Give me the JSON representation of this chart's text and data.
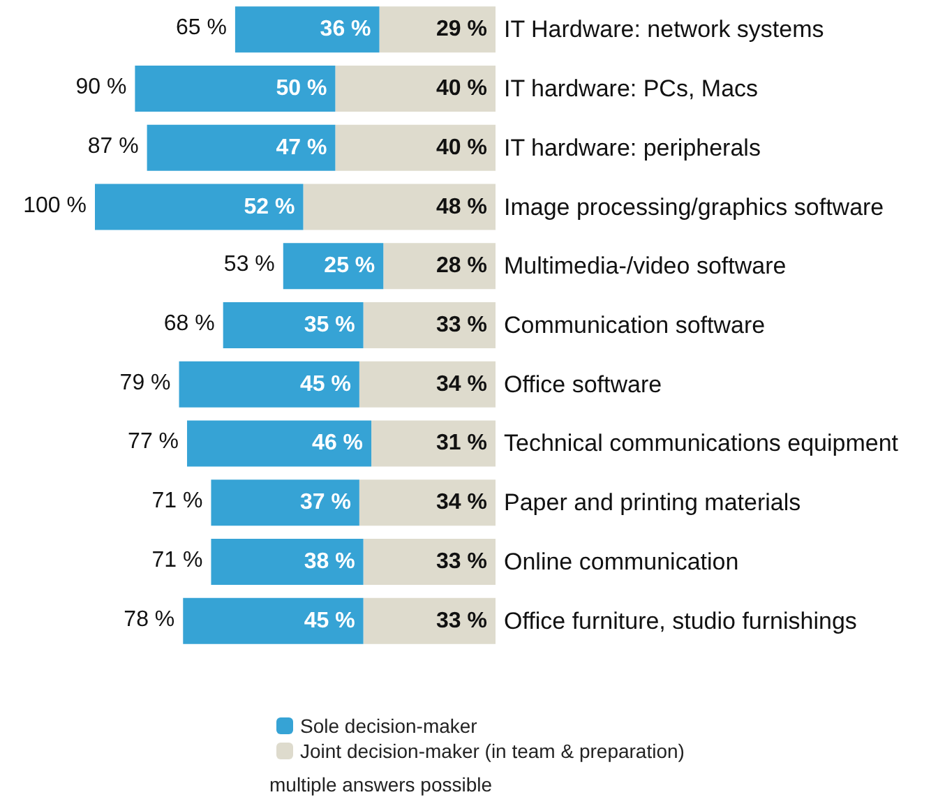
{
  "chart_data": {
    "type": "bar",
    "orientation": "horizontal",
    "stacked": true,
    "categories": [
      "IT Hardware: network systems",
      "IT hardware: PCs, Macs",
      "IT hardware: peripherals",
      "Image processing/graphics software",
      "Multimedia-/video software",
      "Communication software",
      "Office software",
      "Technical communications equipment",
      "Paper and printing materials",
      "Online communication",
      "Office furniture, studio furnishings"
    ],
    "series": [
      {
        "name": "Joint decision-maker (in team & preparation)",
        "color": "#dedbcd",
        "values": [
          29,
          40,
          40,
          48,
          28,
          33,
          34,
          31,
          34,
          33,
          33
        ],
        "value_labels": [
          "29 %",
          "40 %",
          "40 %",
          "48 %",
          "28 %",
          "33 %",
          "34 %",
          "31 %",
          "34 %",
          "33 %",
          "33 %"
        ]
      },
      {
        "name": "Sole decision-maker",
        "color": "#36a3d5",
        "values": [
          36,
          50,
          47,
          52,
          25,
          35,
          45,
          46,
          37,
          38,
          45
        ],
        "value_labels": [
          "36 %",
          "50 %",
          "47 %",
          "52 %",
          "25 %",
          "35 %",
          "45 %",
          "46 %",
          "37 %",
          "38 %",
          "45 %"
        ]
      }
    ],
    "totals": [
      "65 %",
      "90 %",
      "87 %",
      "100 %",
      "53 %",
      "68 %",
      "79 %",
      "77 %",
      "71 %",
      "71 %",
      "78 %"
    ],
    "xlim": [
      100,
      0
    ],
    "tick_labels": "y",
    "grid": false,
    "legend": "bottom",
    "annotations": [
      "multiple answers possible"
    ]
  }
}
